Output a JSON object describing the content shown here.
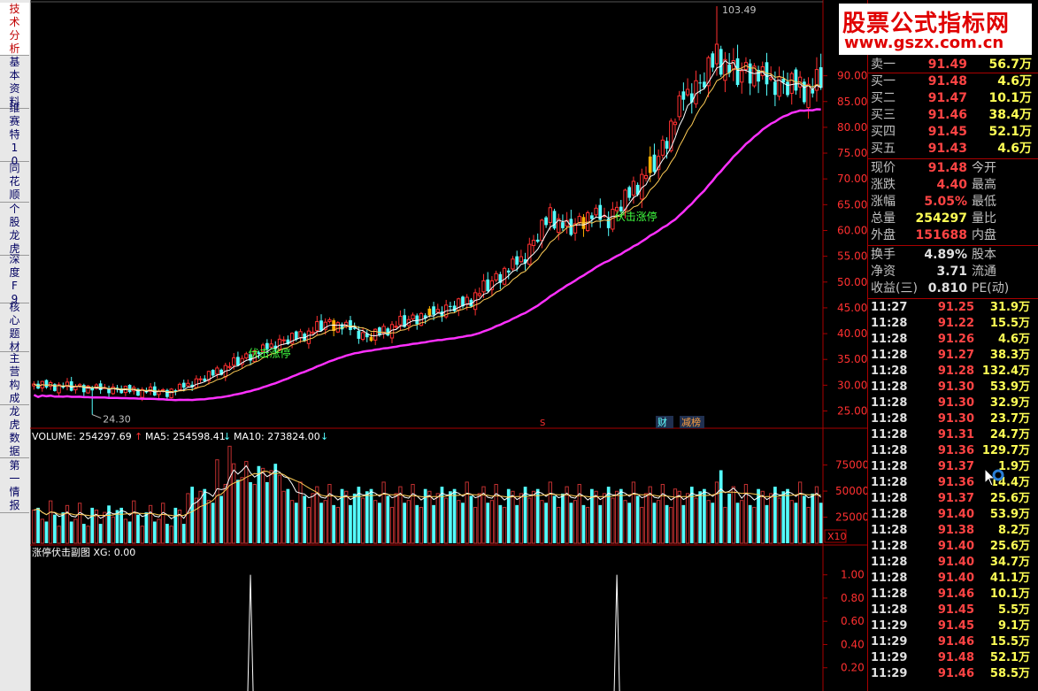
{
  "tabs": [
    "技术分析",
    "基本资料",
    "维赛特10",
    "同花顺",
    "个股龙虎",
    "深度F9",
    "核心题材",
    "主营构成",
    "龙虎数据",
    "第一情报"
  ],
  "watermark": {
    "line1": "股票公式指标网",
    "line2": "www.gszx.com.cn"
  },
  "main_chart": {
    "annotations": {
      "high": "103.49",
      "low": "24.30",
      "signal": "伏击涨停",
      "marker_cai": "财",
      "marker_jian": "减榜",
      "marker_s": "S"
    },
    "price_axis": [
      "90.00",
      "85.00",
      "80.00",
      "75.00",
      "70.00",
      "65.00",
      "60.00",
      "55.00",
      "50.00",
      "45.00",
      "40.00",
      "35.00",
      "30.00",
      "25.00"
    ]
  },
  "volume_panel": {
    "label_volume": "VOLUME: 254297.69",
    "label_ma5": "MA5: 254598.41",
    "label_ma10": "MA10: 273824.00",
    "axis": [
      "75000",
      "50000",
      "25000"
    ],
    "unit": "X10"
  },
  "indicator_panel": {
    "label": "涨停伏击副图 XG: 0.00",
    "axis": [
      "1.00",
      "0.80",
      "0.60",
      "0.40",
      "0.20"
    ]
  },
  "quote": {
    "order_book": [
      {
        "label": "卖一",
        "price": "91.49",
        "vol": "56.7万"
      },
      {
        "label": "买一",
        "price": "91.48",
        "vol": "4.6万"
      },
      {
        "label": "买二",
        "price": "91.47",
        "vol": "10.1万"
      },
      {
        "label": "买三",
        "price": "91.46",
        "vol": "38.4万"
      },
      {
        "label": "买四",
        "price": "91.45",
        "vol": "52.1万"
      },
      {
        "label": "买五",
        "price": "91.43",
        "vol": "4.6万"
      }
    ],
    "stats": [
      {
        "label": "现价",
        "value": "91.48",
        "label2": "今开"
      },
      {
        "label": "涨跌",
        "value": "4.40",
        "label2": "最高"
      },
      {
        "label": "涨幅",
        "value": "5.05%",
        "label2": "最低"
      },
      {
        "label": "总量",
        "value": "254297",
        "label2": "量比"
      },
      {
        "label": "外盘",
        "value": "151688",
        "label2": "内盘"
      }
    ],
    "stats2": [
      {
        "label": "换手",
        "value": "4.89%",
        "label2": "股本"
      },
      {
        "label": "净资",
        "value": "3.71",
        "label2": "流通"
      },
      {
        "label": "收益(三)",
        "value": "0.810",
        "label2": "PE(动)"
      }
    ],
    "ticks": [
      {
        "t": "11:27",
        "p": "91.25",
        "v": "31.9万"
      },
      {
        "t": "11:28",
        "p": "91.22",
        "v": "15.5万"
      },
      {
        "t": "11:28",
        "p": "91.26",
        "v": "4.6万"
      },
      {
        "t": "11:28",
        "p": "91.27",
        "v": "38.3万"
      },
      {
        "t": "11:28",
        "p": "91.28",
        "v": "132.4万"
      },
      {
        "t": "11:28",
        "p": "91.30",
        "v": "53.9万"
      },
      {
        "t": "11:28",
        "p": "91.30",
        "v": "32.9万"
      },
      {
        "t": "11:28",
        "p": "91.30",
        "v": "23.7万"
      },
      {
        "t": "11:28",
        "p": "91.31",
        "v": "24.7万"
      },
      {
        "t": "11:28",
        "p": "91.36",
        "v": "129.7万"
      },
      {
        "t": "11:28",
        "p": "91.37",
        "v": "1.9万"
      },
      {
        "t": "11:28",
        "p": "91.36",
        "v": "14.4万"
      },
      {
        "t": "11:28",
        "p": "91.37",
        "v": "25.6万"
      },
      {
        "t": "11:28",
        "p": "91.40",
        "v": "53.9万"
      },
      {
        "t": "11:28",
        "p": "91.38",
        "v": "8.2万"
      },
      {
        "t": "11:28",
        "p": "91.40",
        "v": "25.6万"
      },
      {
        "t": "11:28",
        "p": "91.40",
        "v": "34.7万"
      },
      {
        "t": "11:28",
        "p": "91.40",
        "v": "41.1万"
      },
      {
        "t": "11:28",
        "p": "91.46",
        "v": "10.1万"
      },
      {
        "t": "11:28",
        "p": "91.45",
        "v": "5.5万"
      },
      {
        "t": "11:29",
        "p": "91.45",
        "v": "9.1万"
      },
      {
        "t": "11:29",
        "p": "91.46",
        "v": "15.5万"
      },
      {
        "t": "11:29",
        "p": "91.48",
        "v": "52.1万"
      },
      {
        "t": "11:29",
        "p": "91.46",
        "v": "58.5万"
      }
    ]
  },
  "chart_data": {
    "type": "candlestick",
    "ylim": [
      22,
      104
    ],
    "volume_ylim": [
      0,
      95000
    ],
    "indicator_ylim": [
      0,
      1.15
    ],
    "trend_ctrl": [
      [
        0,
        30
      ],
      [
        22,
        29
      ],
      [
        32,
        28.5
      ],
      [
        40,
        31
      ],
      [
        50,
        35
      ],
      [
        58,
        38
      ],
      [
        62,
        39
      ],
      [
        66,
        40
      ],
      [
        70,
        42
      ],
      [
        76,
        41
      ],
      [
        80,
        39
      ],
      [
        88,
        42
      ],
      [
        96,
        44
      ],
      [
        104,
        46
      ],
      [
        110,
        50
      ],
      [
        118,
        55
      ],
      [
        124,
        63
      ],
      [
        128,
        60
      ],
      [
        134,
        63
      ],
      [
        138,
        62
      ],
      [
        144,
        68
      ],
      [
        150,
        74
      ],
      [
        156,
        86
      ],
      [
        160,
        88
      ],
      [
        164,
        94
      ],
      [
        168,
        90
      ],
      [
        172,
        91
      ],
      [
        176,
        89
      ],
      [
        180,
        88
      ],
      [
        183,
        88
      ],
      [
        187,
        87
      ],
      [
        190,
        91
      ]
    ],
    "jitter": [
      0.3,
      -0.8,
      1.1,
      -0.4,
      0.9,
      -1.2,
      0.5,
      -0.2,
      1.3,
      -0.9,
      0.2,
      0.8,
      -1.1,
      0.6,
      -0.5,
      1.0,
      -0.3,
      0.4,
      -1.0,
      0.7
    ],
    "yellow_bars": [
      72,
      81,
      95,
      132,
      148
    ],
    "signals": [
      0.0,
      0.0,
      1.0,
      0.0,
      0.0,
      0.0,
      0.0,
      0.0,
      0.0,
      0.0,
      0.0,
      0.0,
      0.0,
      0.0,
      0.0,
      0.0,
      0.0,
      0.0,
      0.0,
      0.0,
      0.0,
      0.0,
      0.0,
      0.0,
      0.0,
      0.0,
      0.0,
      0.0,
      0.0,
      0.0,
      0.0,
      0.0,
      0.0,
      0.0,
      0.0,
      0.0,
      0.0,
      0.0,
      0.0,
      0.0,
      0.0,
      0.0,
      0.0,
      0.0,
      0.0,
      0.0,
      0.0,
      0.0,
      0.0,
      0.0,
      0.0,
      0.0,
      0.0,
      0.0,
      0.0,
      0.0,
      0.0,
      0.0,
      0.0,
      0.0,
      0.0,
      0.0,
      0.0,
      0.0,
      0.0,
      0.0,
      0.0,
      0.0,
      0.0,
      0.0,
      0.0,
      0.0,
      0.0,
      0.0,
      0.0,
      0.0,
      0.0,
      0.0,
      0.0,
      0.0,
      0.0,
      0.0,
      0.0,
      0.0,
      0.0,
      0.0,
      0.0,
      0.0,
      0.0,
      0.0,
      0.0,
      0.0,
      0.0,
      0.0,
      0.0,
      0.0,
      0.0,
      0.0,
      0.0,
      0.0,
      0.0,
      0.0,
      0.0,
      0.0,
      0.0,
      0.0,
      0.0,
      0.0,
      0.0,
      0.0,
      0.0,
      0.0,
      0.0,
      0.0,
      0.0,
      0.0,
      0.0,
      0.0,
      0.0,
      0.0,
      0.0,
      0.0,
      0.0,
      0.0,
      0.0,
      0.0,
      0.0,
      0.0,
      0.0,
      0.0,
      0.0,
      0.0,
      0.0,
      0.0,
      0.0,
      0.0,
      0.0,
      0.0,
      0.0,
      0.0,
      0.0,
      0.0,
      0.0,
      0.0,
      0.0,
      0.0,
      0.0,
      0.0,
      0.0,
      0.0,
      0.0,
      0.0,
      0.0,
      0.0,
      0.0,
      0.0,
      0.0,
      0.0,
      0.0,
      0.0,
      0.0,
      0.0,
      0.0,
      0.0,
      0.0,
      0.0,
      0.0,
      0.0,
      0.0,
      0.0,
      0.0,
      0.0,
      0.0,
      0.0,
      0.0,
      0.0,
      0.0,
      0.0,
      0.0,
      0.0,
      0.0,
      0.0,
      0.0,
      0.0,
      0.0,
      0.0
    ]
  }
}
